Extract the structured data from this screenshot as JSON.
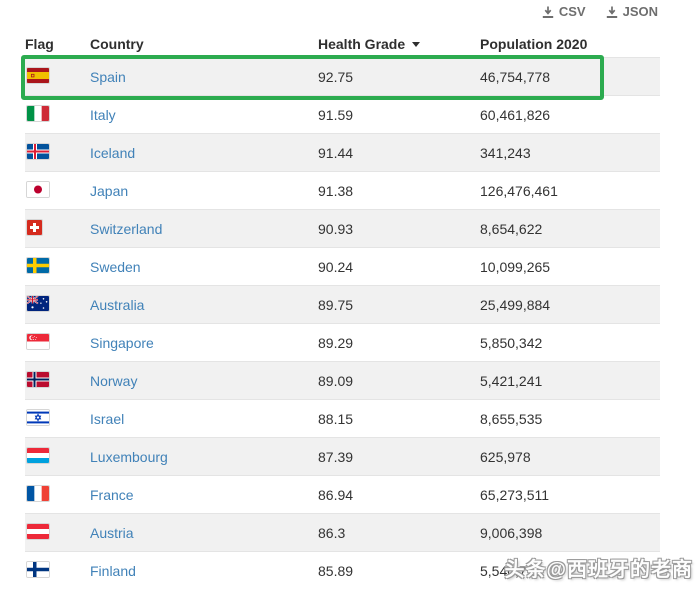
{
  "toolbar": {
    "csv_label": "CSV",
    "json_label": "JSON",
    "csv_icon": "download-icon",
    "json_icon": "download-icon"
  },
  "table": {
    "columns": [
      "Flag",
      "Country",
      "Health Grade",
      "Population 2020"
    ],
    "sorted_column": "Health Grade",
    "sort_direction": "desc",
    "rows": [
      {
        "flag": "spain-flag",
        "country": "Spain",
        "health_grade": "92.75",
        "population_2020": "46,754,778",
        "highlighted": true
      },
      {
        "flag": "italy-flag",
        "country": "Italy",
        "health_grade": "91.59",
        "population_2020": "60,461,826",
        "highlighted": false
      },
      {
        "flag": "iceland-flag",
        "country": "Iceland",
        "health_grade": "91.44",
        "population_2020": "341,243",
        "highlighted": false
      },
      {
        "flag": "japan-flag",
        "country": "Japan",
        "health_grade": "91.38",
        "population_2020": "126,476,461",
        "highlighted": false
      },
      {
        "flag": "switzerland-flag",
        "country": "Switzerland",
        "health_grade": "90.93",
        "population_2020": "8,654,622",
        "highlighted": false
      },
      {
        "flag": "sweden-flag",
        "country": "Sweden",
        "health_grade": "90.24",
        "population_2020": "10,099,265",
        "highlighted": false
      },
      {
        "flag": "australia-flag",
        "country": "Australia",
        "health_grade": "89.75",
        "population_2020": "25,499,884",
        "highlighted": false
      },
      {
        "flag": "singapore-flag",
        "country": "Singapore",
        "health_grade": "89.29",
        "population_2020": "5,850,342",
        "highlighted": false
      },
      {
        "flag": "norway-flag",
        "country": "Norway",
        "health_grade": "89.09",
        "population_2020": "5,421,241",
        "highlighted": false
      },
      {
        "flag": "israel-flag",
        "country": "Israel",
        "health_grade": "88.15",
        "population_2020": "8,655,535",
        "highlighted": false
      },
      {
        "flag": "luxembourg-flag",
        "country": "Luxembourg",
        "health_grade": "87.39",
        "population_2020": "625,978",
        "highlighted": false
      },
      {
        "flag": "france-flag",
        "country": "France",
        "health_grade": "86.94",
        "population_2020": "65,273,511",
        "highlighted": false
      },
      {
        "flag": "austria-flag",
        "country": "Austria",
        "health_grade": "86.3",
        "population_2020": "9,006,398",
        "highlighted": false
      },
      {
        "flag": "finland-flag",
        "country": "Finland",
        "health_grade": "85.89",
        "population_2020": "5,540,720",
        "highlighted": false
      }
    ]
  },
  "watermark": "头条@西班牙的老商",
  "colors": {
    "link_blue": "#4182b8",
    "stripe": "#f1f1f1",
    "header_text": "#2f2f2f",
    "highlight_green": "#2cab4f",
    "export_gray": "#6e6e6e"
  }
}
